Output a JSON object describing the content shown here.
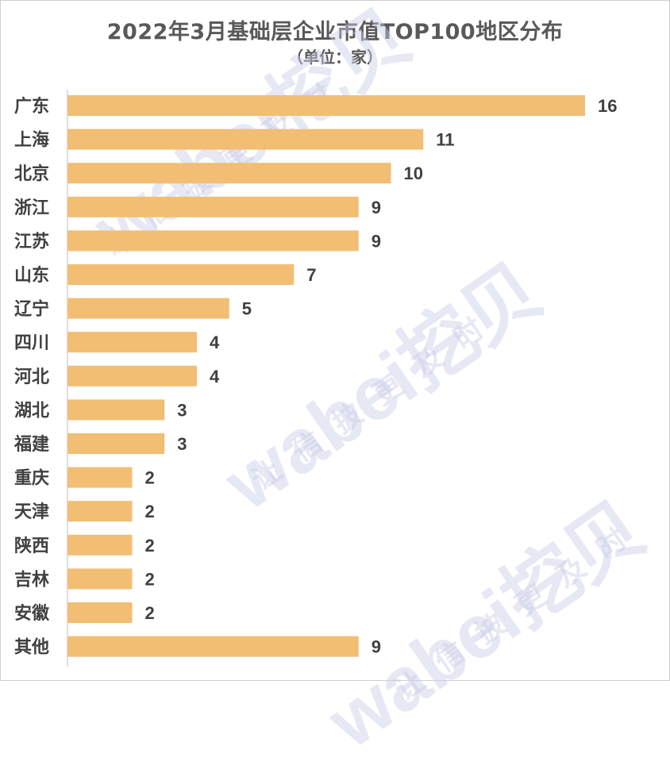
{
  "chart_data": {
    "type": "bar",
    "orientation": "horizontal",
    "title": "2022年3月基础层企业市值TOP100地区分布",
    "subtitle": "（单位：家）",
    "categories": [
      "广东",
      "上海",
      "北京",
      "浙江",
      "江苏",
      "山东",
      "辽宁",
      "四川",
      "河北",
      "湖北",
      "福建",
      "重庆",
      "天津",
      "陕西",
      "吉林",
      "安徽",
      "其他"
    ],
    "values": [
      16,
      11,
      10,
      9,
      9,
      7,
      5,
      4,
      4,
      3,
      3,
      2,
      2,
      2,
      2,
      2,
      9
    ],
    "xlim": [
      0,
      16
    ],
    "grid": false,
    "data_labels": true,
    "bar_color": "#F2BE74"
  },
  "watermark": {
    "brand": "wabei挖贝",
    "slogan": "让信披更及时"
  }
}
